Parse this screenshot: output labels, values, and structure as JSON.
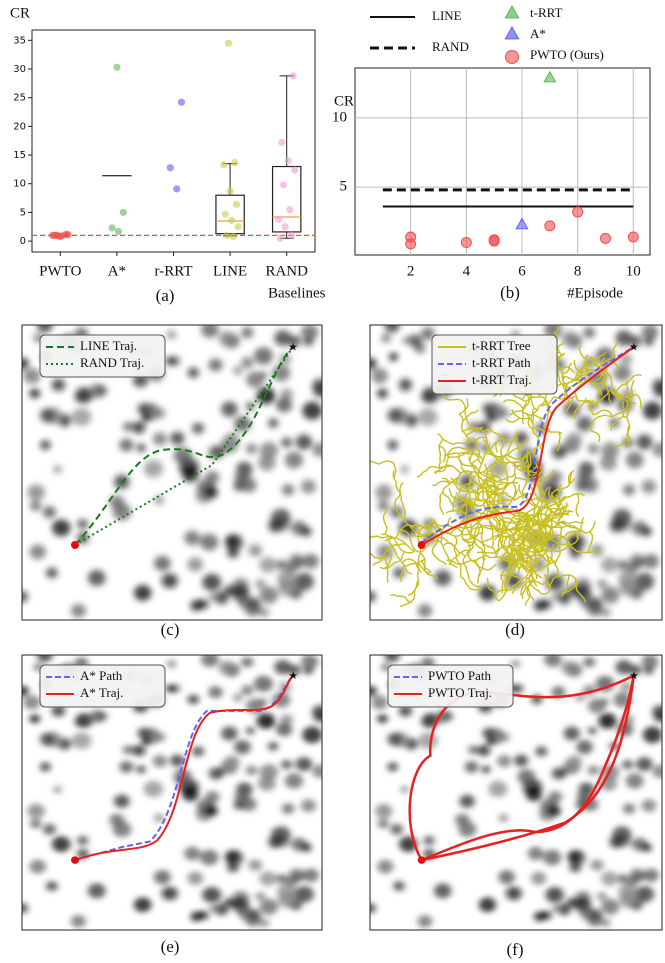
{
  "chart_data": [
    {
      "type": "strip",
      "y_label": "CR",
      "x_label": "Baselines",
      "caption": "(a)",
      "categories": [
        "PWTO",
        "A*",
        "r-RRT",
        "LINE",
        "RAND"
      ],
      "colors": [
        "#e8534f",
        "#5cb85c",
        "#5b5bef",
        "#c8cc4a",
        "#f29bd0"
      ],
      "points": [
        [
          1.0,
          0.9,
          1.1,
          1.0,
          0.8,
          1.2,
          1.0,
          0.9,
          1.1,
          1.0
        ],
        [
          30.3,
          5.0,
          2.3,
          1.7
        ],
        [
          24.2,
          12.8,
          9.1
        ],
        [
          34.5,
          13.7,
          13.3,
          8.7,
          6.4,
          4.7,
          3.6,
          2.5,
          1.0,
          0.8
        ],
        [
          28.8,
          17.2,
          14.0,
          12.4,
          9.8,
          5.5,
          3.8,
          2.5,
          1.0,
          0.5
        ]
      ],
      "boxes": [
        null,
        {
          "q1": 11.4,
          "q3": 11.4
        },
        null,
        {
          "whislo": 0.9,
          "q1": 1.3,
          "med": 3.5,
          "q3": 8.0,
          "whishi": 13.5
        },
        {
          "whislo": 0.5,
          "q1": 1.6,
          "med": 4.2,
          "q3": 13.0,
          "whishi": 28.8
        }
      ],
      "hline": 1,
      "hline_color": "#e8534f",
      "ylim": [
        -1.9,
        36.8
      ],
      "yticks": [
        0,
        5,
        10,
        15,
        20,
        25,
        30,
        35
      ]
    },
    {
      "type": "scatter",
      "y_label": "CR",
      "x_label": "#Episode",
      "caption": "(b)",
      "xlim": [
        0,
        10.6
      ],
      "ylim": [
        0.1,
        13.6
      ],
      "xticks": [
        2,
        4,
        6,
        8,
        10
      ],
      "yticks": [
        5,
        10
      ],
      "grid": true,
      "lines": [
        {
          "name": "LINE",
          "value": 3.6,
          "x": [
            1,
            10
          ],
          "style": "solid"
        },
        {
          "name": "RAND",
          "value": 4.8,
          "x": [
            1,
            10
          ],
          "style": "dashed"
        }
      ],
      "series": [
        {
          "name": "t-RRT",
          "color": "#5cb85c",
          "marker": "triangle",
          "x": [
            7
          ],
          "y": [
            12.9
          ]
        },
        {
          "name": "A*",
          "color": "#6464f0",
          "marker": "triangle",
          "x": [
            6
          ],
          "y": [
            2.3
          ]
        },
        {
          "name": "PWTO (Ours)",
          "color": "#f05050",
          "marker": "circle",
          "x": [
            2,
            2,
            4,
            5,
            5,
            7,
            8,
            9,
            10
          ],
          "y": [
            1.4,
            0.9,
            1.0,
            1.2,
            1.1,
            2.2,
            3.2,
            1.3,
            1.4
          ]
        }
      ]
    }
  ],
  "panels": [
    {
      "caption": "(c)",
      "legend": [
        "LINE Traj.",
        "RAND Traj."
      ]
    },
    {
      "caption": "(d)",
      "legend": [
        "t-RRT Tree",
        "t-RRT Path",
        "t-RRT Traj."
      ]
    },
    {
      "caption": "(e)",
      "legend": [
        "A* Path",
        "A* Traj."
      ]
    },
    {
      "caption": "(f)",
      "legend": [
        "PWTO Path",
        "PWTO Traj."
      ]
    }
  ]
}
